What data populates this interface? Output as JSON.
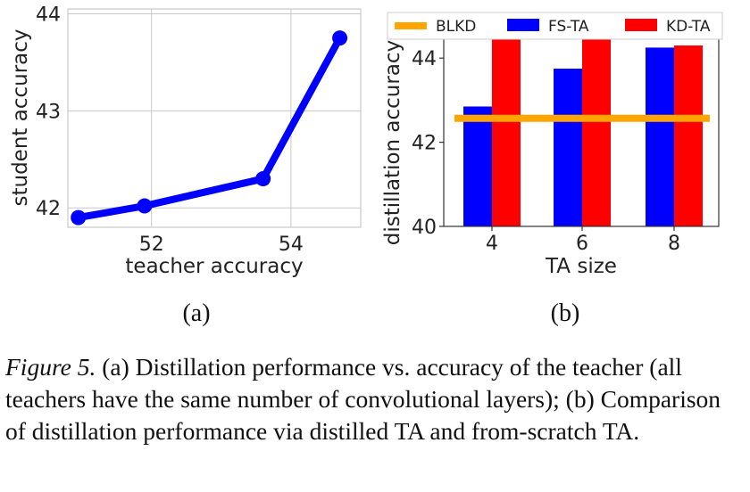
{
  "chart_data": [
    {
      "type": "line",
      "panel_label": "(a)",
      "xlabel": "teacher accuracy",
      "ylabel": "student accuracy",
      "xlim": [
        50.8,
        55.0
      ],
      "ylim": [
        41.8,
        44.05
      ],
      "xticks": [
        52,
        54
      ],
      "yticks": [
        42,
        43,
        44
      ],
      "grid": true,
      "series": [
        {
          "color": "#0000ff",
          "x": [
            50.95,
            51.9,
            53.6,
            54.7
          ],
          "y": [
            41.9,
            42.02,
            42.3,
            43.75
          ]
        }
      ]
    },
    {
      "type": "bar",
      "panel_label": "(b)",
      "xlabel": "TA size",
      "ylabel": "distillation accuracy",
      "categories": [
        "4",
        "6",
        "8"
      ],
      "ylim": [
        40,
        45
      ],
      "yticks": [
        40,
        42,
        44
      ],
      "grid": false,
      "legend": "top",
      "series": [
        {
          "name": "FS-TA",
          "color": "#0000ff",
          "values": [
            42.85,
            43.75,
            44.25
          ]
        },
        {
          "name": "KD-TA",
          "color": "#ff0000",
          "values": [
            44.95,
            44.6,
            44.3
          ]
        }
      ],
      "baseline": {
        "name": "BLKD",
        "color": "#ffa500",
        "value": 42.57
      }
    }
  ],
  "caption": {
    "figure_ref": "Figure 5.",
    "text": " (a) Distillation performance vs. accuracy of the teacher (all teachers have the same number of convolutional layers); (b) Comparison of distillation performance via distilled TA and from-scratch TA."
  }
}
